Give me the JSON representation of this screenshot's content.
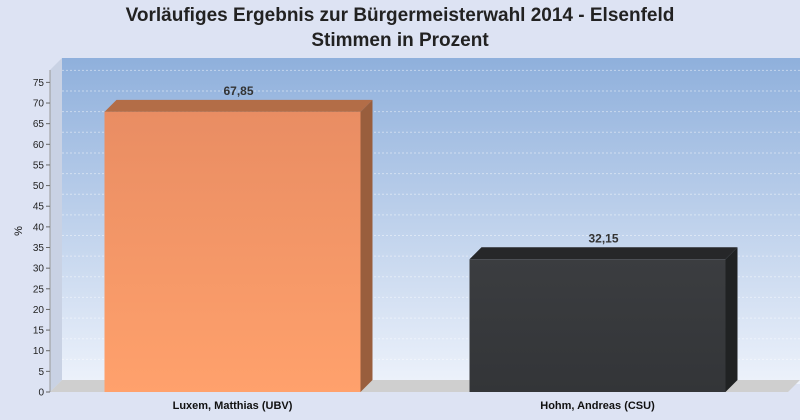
{
  "chart_data": {
    "type": "bar",
    "title": "Vorläufiges Ergebnis zur Bürgermeisterwahl 2014 - Elsenfeld",
    "subtitle": "Stimmen in Prozent",
    "ylabel": "%",
    "xlabel": "",
    "ylim": [
      0,
      78
    ],
    "yticks": [
      0,
      5,
      10,
      15,
      20,
      25,
      30,
      35,
      40,
      45,
      50,
      55,
      60,
      65,
      70,
      75
    ],
    "categories": [
      "Luxem, Matthias (UBV)",
      "Hohm, Andreas (CSU)"
    ],
    "values": [
      67.85,
      32.15
    ],
    "value_labels": [
      "67,85",
      "32,15"
    ],
    "colors": [
      "#ff9c66",
      "#36383b"
    ],
    "grid": true,
    "legend": "none",
    "background": "#dde3f3"
  }
}
